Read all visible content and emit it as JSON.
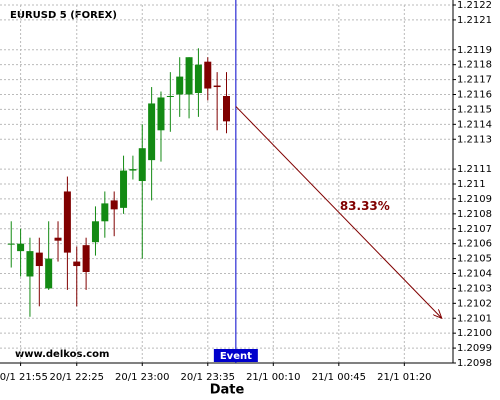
{
  "chart_data": {
    "type": "candlestick",
    "title": "EURUSD 5 (FOREX)",
    "watermark": "www.delkos.com",
    "x_label": "Date",
    "x": [
      "20/1 21:50",
      "20/1 21:55",
      "20/1 22:00",
      "20/1 22:05",
      "20/1 22:10",
      "20/1 22:15",
      "20/1 22:20",
      "20/1 22:25",
      "20/1 22:30",
      "20/1 22:35",
      "20/1 22:40",
      "20/1 22:45",
      "20/1 22:50",
      "20/1 22:55",
      "20/1 23:00",
      "20/1 23:05",
      "20/1 23:10",
      "20/1 23:15",
      "20/1 23:20",
      "20/1 23:25",
      "20/1 23:30",
      "20/1 23:35",
      "20/1 23:40",
      "20/1 23:45"
    ],
    "open": [
      1.2106,
      1.21055,
      1.21038,
      1.21054,
      1.2103,
      1.21064,
      1.21095,
      1.21048,
      1.21059,
      1.21061,
      1.21075,
      1.21089,
      1.21084,
      1.21109,
      1.21102,
      1.21116,
      1.21136,
      1.21159,
      1.2116,
      1.2116,
      1.21161,
      1.21182,
      1.21166,
      1.21159
    ],
    "high": [
      1.21075,
      1.2107,
      1.21064,
      1.21064,
      1.21075,
      1.21075,
      1.21105,
      1.21058,
      1.21064,
      1.21085,
      1.21095,
      1.21095,
      1.21119,
      1.21119,
      1.2114,
      1.21165,
      1.21162,
      1.21175,
      1.21185,
      1.21185,
      1.21191,
      1.21185,
      1.21175,
      1.21175
    ],
    "low": [
      1.21044,
      1.21038,
      1.21011,
      1.21018,
      1.21029,
      1.21048,
      1.21029,
      1.21018,
      1.21029,
      1.21052,
      1.21064,
      1.21065,
      1.2108,
      1.21103,
      1.2105,
      1.21089,
      1.21115,
      1.21135,
      1.21145,
      1.21144,
      1.21145,
      1.21156,
      1.21136,
      1.21134
    ],
    "close": [
      1.2106,
      1.2106,
      1.21055,
      1.21045,
      1.2105,
      1.21062,
      1.21054,
      1.21045,
      1.21041,
      1.21075,
      1.21087,
      1.21083,
      1.21109,
      1.2111,
      1.21124,
      1.21154,
      1.21158,
      1.21159,
      1.21172,
      1.21185,
      1.2118,
      1.21164,
      1.21165,
      1.21142
    ],
    "up_color": "#138a13",
    "down_color": "#800000",
    "xlim": [
      "20/1 21:44",
      "21/1 01:46"
    ],
    "xticks": [
      "20/1 21:55",
      "20/1 22:25",
      "20/1 23:00",
      "20/1 23:35",
      "21/1 00:10",
      "21/1 00:45",
      "21/1 01:20"
    ],
    "ylim": [
      1.2098,
      1.2122
    ],
    "yticks": [
      1.2098,
      1.2099,
      {
        "value": 1.21,
        "label": "1.2100"
      },
      1.2101,
      1.2102,
      1.2103,
      1.2104,
      1.2105,
      1.2106,
      1.2107,
      1.2108,
      1.2109,
      1.211,
      1.2111,
      1.2113,
      1.2114,
      1.2115,
      1.2116,
      1.2117,
      1.2118,
      1.2119,
      1.2121,
      1.2122
    ],
    "grid": true,
    "event": {
      "label": "Event",
      "x": "20/1 23:50",
      "color": "#0000cc"
    },
    "forecast": {
      "x": [
        "20/1 23:50",
        "21/1 01:40"
      ],
      "values": [
        1.21152,
        1.2101
      ],
      "label": "83.33%",
      "color": "#800000"
    }
  }
}
